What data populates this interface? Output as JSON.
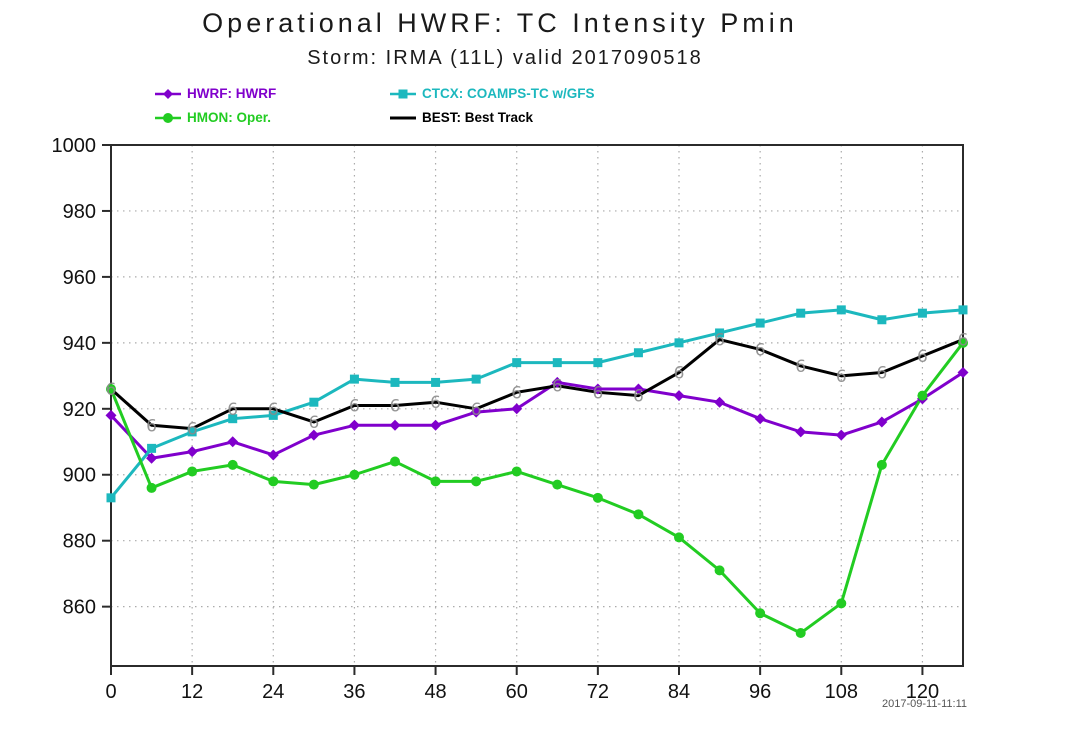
{
  "title": "Operational HWRF: TC Intensity Pmin",
  "subtitle": "Storm: IRMA (11L) valid 2017090518",
  "timestamp": "2017-09-11-11:11",
  "colors": {
    "hwrf": "#8000CC",
    "ctcx": "#1CB8BE",
    "hmon": "#22CC22",
    "best": "#000000",
    "grid": "#ABABAB",
    "axis": "#2b2b2b",
    "hurricane_glyph": "#8a8a8a"
  },
  "chart_data": {
    "type": "line",
    "title": "Operational HWRF: TC Intensity Pmin",
    "subtitle": "Storm: IRMA (11L) valid 2017090518",
    "xlabel": "",
    "ylabel": "",
    "x": [
      0,
      6,
      12,
      18,
      24,
      30,
      36,
      42,
      48,
      54,
      60,
      66,
      72,
      78,
      84,
      90,
      96,
      102,
      108,
      114,
      120,
      126
    ],
    "xticks": [
      0,
      12,
      24,
      36,
      48,
      60,
      72,
      84,
      96,
      108,
      120
    ],
    "xlim": [
      0,
      126
    ],
    "yticks": [
      860,
      880,
      900,
      920,
      940,
      960,
      980,
      1000
    ],
    "ylim": [
      842,
      1000
    ],
    "grid": true,
    "legend_position": "top",
    "series": [
      {
        "name": "HWRF: HWRF",
        "color": "#8000CC",
        "marker": "diamond",
        "values": [
          918,
          905,
          907,
          910,
          906,
          912,
          915,
          915,
          915,
          919,
          920,
          928,
          926,
          926,
          924,
          922,
          917,
          913,
          912,
          916,
          923,
          931
        ]
      },
      {
        "name": "CTCX: COAMPS-TC w/GFS",
        "color": "#1CB8BE",
        "marker": "square",
        "values": [
          893,
          908,
          913,
          917,
          918,
          922,
          929,
          928,
          928,
          929,
          934,
          934,
          934,
          937,
          940,
          943,
          946,
          949,
          950,
          947,
          949,
          950
        ]
      },
      {
        "name": "HMON: Oper.",
        "color": "#22CC22",
        "marker": "circle",
        "values": [
          926,
          896,
          901,
          903,
          898,
          897,
          900,
          904,
          898,
          898,
          901,
          897,
          893,
          888,
          881,
          871,
          858,
          852,
          861,
          903,
          924,
          940
        ]
      },
      {
        "name": "BEST: Best Track",
        "color": "#000000",
        "marker": "hurricane",
        "values": [
          926,
          915,
          914,
          920,
          920,
          916,
          921,
          921,
          922,
          920,
          925,
          927,
          925,
          924,
          931,
          941,
          938,
          933,
          930,
          931,
          936,
          941
        ]
      }
    ]
  }
}
